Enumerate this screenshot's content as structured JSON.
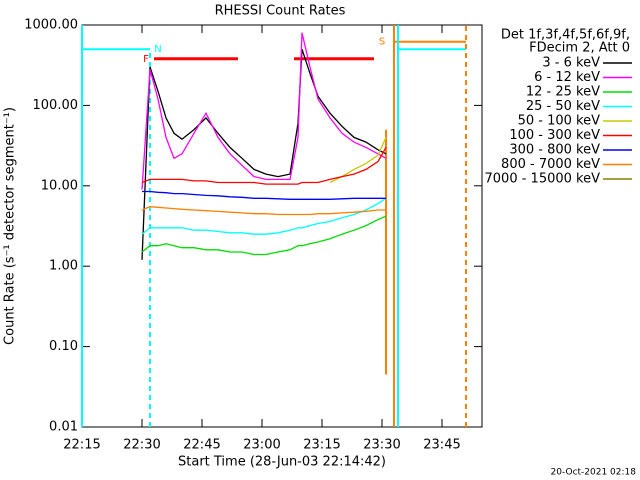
{
  "chart_data": {
    "type": "line",
    "title": "RHESSI Count Rates",
    "xlabel": "Start Time (28-Jun-03 22:14:42)",
    "ylabel": "Count Rate (s⁻¹ detector segment⁻¹)",
    "footer": "20-Oct-2021 02:18",
    "legend_header": [
      "Det 1f,3f,4f,5f,6f,9f,",
      "FDecim 2, Att 0"
    ],
    "log_y": true,
    "xlim": [
      "22:15",
      "23:55"
    ],
    "xticks": [
      "22:15",
      "22:30",
      "22:45",
      "23:00",
      "23:15",
      "23:30",
      "23:45"
    ],
    "ylim": [
      0.01,
      1000
    ],
    "yticks": [
      {
        "value": 0.01,
        "label": "0.01"
      },
      {
        "value": 0.1,
        "label": "0.10"
      },
      {
        "value": 1,
        "label": "1.00"
      },
      {
        "value": 10,
        "label": "10.00"
      },
      {
        "value": 100,
        "label": "100.00"
      },
      {
        "value": 1000,
        "label": "1000.00"
      }
    ],
    "x": [
      "22:30",
      "22:32",
      "22:34",
      "22:36",
      "22:38",
      "22:40",
      "22:43",
      "22:46",
      "22:49",
      "22:52",
      "22:55",
      "22:58",
      "23:01",
      "23:04",
      "23:07",
      "23:09",
      "23:10",
      "23:12",
      "23:14",
      "23:17",
      "23:20",
      "23:23",
      "23:26",
      "23:29",
      "23:31"
    ],
    "series": [
      {
        "name": "3 - 6 keV",
        "color": "#000000",
        "values": [
          1.2,
          300,
          150,
          70,
          45,
          38,
          50,
          70,
          45,
          30,
          22,
          16,
          14,
          13,
          14,
          60,
          500,
          250,
          130,
          80,
          55,
          40,
          35,
          28,
          25
        ]
      },
      {
        "name": "6 - 12 keV",
        "color": "#ff00ff",
        "values": [
          9,
          280,
          120,
          40,
          22,
          25,
          45,
          80,
          40,
          25,
          18,
          13,
          12,
          12,
          12,
          40,
          800,
          300,
          120,
          70,
          45,
          35,
          30,
          25,
          22
        ]
      },
      {
        "name": "12 - 25 keV",
        "color": "#00dd00",
        "values": [
          1.5,
          1.8,
          1.8,
          1.9,
          1.8,
          1.7,
          1.7,
          1.6,
          1.6,
          1.5,
          1.5,
          1.4,
          1.4,
          1.5,
          1.6,
          1.8,
          1.8,
          1.9,
          2.0,
          2.2,
          2.5,
          2.8,
          3.2,
          3.8,
          4.2
        ]
      },
      {
        "name": "25 - 50 keV",
        "color": "#00ffff",
        "values": [
          2.5,
          3,
          3,
          3,
          3,
          3,
          2.8,
          2.8,
          2.7,
          2.6,
          2.6,
          2.5,
          2.5,
          2.6,
          2.8,
          3,
          3,
          3.2,
          3.4,
          3.6,
          4,
          4.4,
          5,
          6,
          7
        ]
      },
      {
        "name": "50 - 100 keV",
        "color": "#c8c800",
        "values": [
          null,
          null,
          null,
          null,
          null,
          null,
          null,
          null,
          null,
          null,
          null,
          null,
          null,
          null,
          null,
          null,
          null,
          null,
          null,
          11,
          13,
          16,
          19,
          24,
          40
        ]
      },
      {
        "name": "100 - 300 keV",
        "color": "#ff0000",
        "values": [
          11,
          12,
          12,
          12,
          12,
          12,
          11.5,
          11.5,
          11,
          11,
          11,
          11,
          10.5,
          10.5,
          10.5,
          10.5,
          11,
          11,
          11,
          12,
          13,
          14,
          16,
          20,
          30
        ]
      },
      {
        "name": "300 - 800 keV",
        "color": "#0000ff",
        "values": [
          8.5,
          8.5,
          8.3,
          8.2,
          8,
          8,
          7.8,
          7.6,
          7.5,
          7.3,
          7.2,
          7,
          7,
          6.9,
          6.8,
          6.8,
          6.8,
          6.8,
          6.8,
          6.8,
          6.9,
          7,
          7,
          7,
          7
        ]
      },
      {
        "name": "800 - 7000 keV",
        "color": "#ff8000",
        "values": [
          5,
          5.5,
          5.4,
          5.3,
          5.2,
          5.1,
          5,
          4.9,
          4.8,
          4.7,
          4.6,
          4.5,
          4.5,
          4.4,
          4.4,
          4.4,
          4.4,
          4.4,
          4.5,
          4.5,
          4.6,
          4.7,
          4.8,
          5,
          5
        ]
      },
      {
        "name": "7000 - 15000 keV",
        "color": "#808000",
        "values": [
          null,
          null,
          null,
          null,
          null,
          null,
          null,
          null,
          null,
          null,
          null,
          null,
          null,
          null,
          null,
          null,
          null,
          null,
          null,
          null,
          null,
          null,
          null,
          null,
          null
        ]
      }
    ],
    "segments": [
      {
        "x": [
          "22:15",
          "22:32"
        ],
        "y": [
          500,
          500
        ],
        "color": "#00ffff",
        "dash": false
      },
      {
        "x": [
          "22:33",
          "22:54"
        ],
        "y": [
          380,
          380
        ],
        "color": "#ff0000",
        "dash": false
      },
      {
        "x": [
          "23:08",
          "23:28"
        ],
        "y": [
          380,
          380
        ],
        "color": "#ff0000",
        "dash": false
      },
      {
        "x": [
          "23:33",
          "23:51"
        ],
        "y": [
          620,
          620
        ],
        "color": "#ff8000",
        "dash": false
      },
      {
        "x": [
          "23:34",
          "23:51"
        ],
        "y": [
          500,
          500
        ],
        "color": "#00ffff",
        "dash": false
      },
      {
        "x": [
          "23:31",
          "23:31"
        ],
        "y": [
          0.045,
          50
        ],
        "color": "#ff8000",
        "dash": false
      },
      {
        "x": [
          "22:15",
          "22:15"
        ],
        "y": [
          0.01,
          1000
        ],
        "color": "#00ffff",
        "dash": false
      },
      {
        "x": [
          "22:32",
          "22:32"
        ],
        "y": [
          0.01,
          500
        ],
        "color": "#00ffff",
        "dash": true
      },
      {
        "x": [
          "23:33",
          "23:33"
        ],
        "y": [
          0.01,
          1000
        ],
        "color": "#ff8000",
        "dash": false
      },
      {
        "x": [
          "23:34",
          "23:34"
        ],
        "y": [
          0.01,
          1000
        ],
        "color": "#00ffff",
        "dash": false
      },
      {
        "x": [
          "23:51",
          "23:51"
        ],
        "y": [
          0.01,
          1000
        ],
        "color": "#ff8000",
        "dash": true
      }
    ],
    "annotations": [
      {
        "text": "F",
        "x": "22:31",
        "y": 380,
        "color": "#ff0000"
      },
      {
        "text": "N",
        "x": "22:34",
        "y": 500,
        "color": "#00ffff"
      },
      {
        "text": "S",
        "x": "23:30",
        "y": 620,
        "color": "#ff8000"
      }
    ]
  }
}
